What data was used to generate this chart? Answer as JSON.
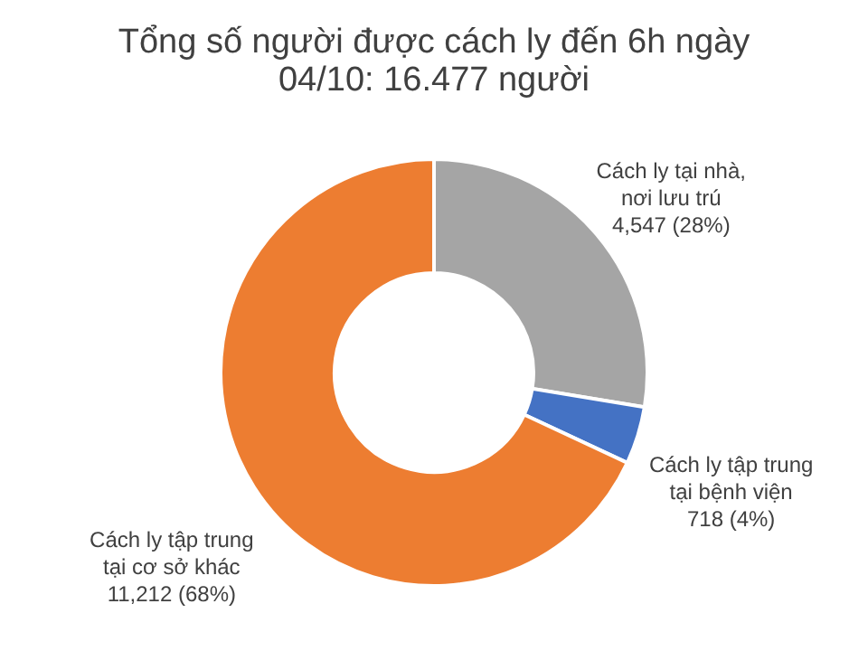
{
  "chart_data": {
    "type": "donut",
    "title": [
      "Tổng số người được cách ly đến 6h ngày",
      "04/10: 16.477 người"
    ],
    "categories": [
      "Cách ly tại nhà, nơi lưu trú",
      "Cách ly tập trung tại bệnh viện",
      "Cách ly tập trung tại cơ sở khác"
    ],
    "values": [
      4547,
      718,
      11212
    ],
    "colors": [
      "#a5a5a5",
      "#4472c4",
      "#ed7d31"
    ],
    "value_labels": [
      "4,547 (28%)",
      "718 (4%)",
      "11,212 (68%)"
    ]
  }
}
